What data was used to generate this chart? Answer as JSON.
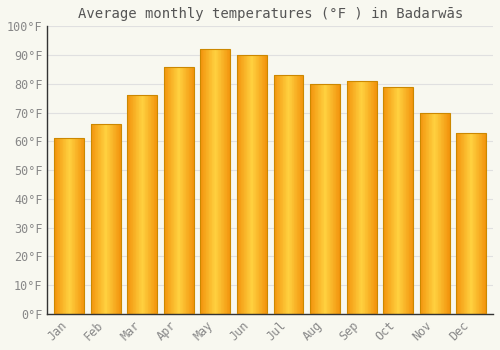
{
  "title": "Average monthly temperatures (°F ) in Badarwās",
  "months": [
    "Jan",
    "Feb",
    "Mar",
    "Apr",
    "May",
    "Jun",
    "Jul",
    "Aug",
    "Sep",
    "Oct",
    "Nov",
    "Dec"
  ],
  "values": [
    61,
    66,
    76,
    86,
    92,
    90,
    83,
    80,
    81,
    79,
    70,
    63
  ],
  "bar_color_main": "#FFAA00",
  "bar_color_light": "#FFD060",
  "bar_color_dark": "#F08000",
  "bar_edge_color": "#CC8800",
  "ylim": [
    0,
    100
  ],
  "yticks": [
    0,
    10,
    20,
    30,
    40,
    50,
    60,
    70,
    80,
    90,
    100
  ],
  "ytick_labels": [
    "0°F",
    "10°F",
    "20°F",
    "30°F",
    "40°F",
    "50°F",
    "60°F",
    "70°F",
    "80°F",
    "90°F",
    "100°F"
  ],
  "background_color": "#F8F8F0",
  "grid_color": "#E0E0E0",
  "title_fontsize": 10,
  "tick_fontsize": 8.5,
  "tick_color": "#888888",
  "bar_width": 0.82
}
